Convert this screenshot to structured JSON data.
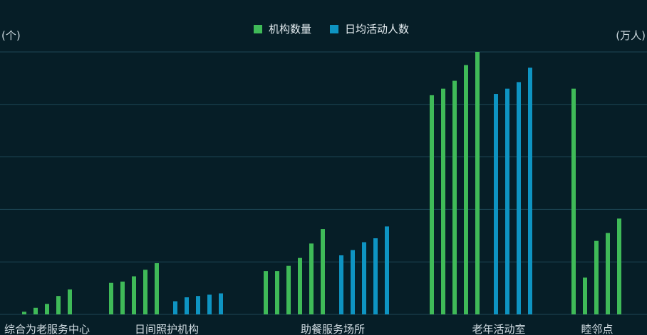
{
  "chart_data": {
    "type": "bar",
    "legend_position": "top-center",
    "grid": true,
    "ylabel_left": "(个)",
    "ylabel_right": "(万人)",
    "ylim": [
      0,
      100
    ],
    "colors": {
      "机构数量": "#3fba58",
      "日均活动人数": "#0e94c2",
      "background": "#061e27",
      "grid": "#1d4756"
    },
    "categories": [
      "综合为老服务中心",
      "日间照护机构",
      "助餐服务场所",
      "老年活动室",
      "睦邻点"
    ],
    "series": [
      {
        "name": "机构数量",
        "values": [
          [
            1,
            2.5,
            4,
            7,
            9.5
          ],
          [
            12,
            12.5,
            14.5,
            17,
            19.5
          ],
          [
            16.5,
            16.5,
            18.5,
            21.5,
            27,
            32.5
          ],
          [
            83.5,
            86,
            89,
            95,
            100
          ],
          [
            86,
            14,
            28,
            31,
            36.5
          ]
        ]
      },
      {
        "name": "日均活动人数",
        "values": [
          [],
          [
            5,
            6.5,
            7,
            7.5,
            8
          ],
          [
            22.5,
            24.5,
            27.5,
            29,
            33.5
          ],
          [
            84,
            86,
            88.5,
            94
          ],
          []
        ]
      }
    ]
  }
}
